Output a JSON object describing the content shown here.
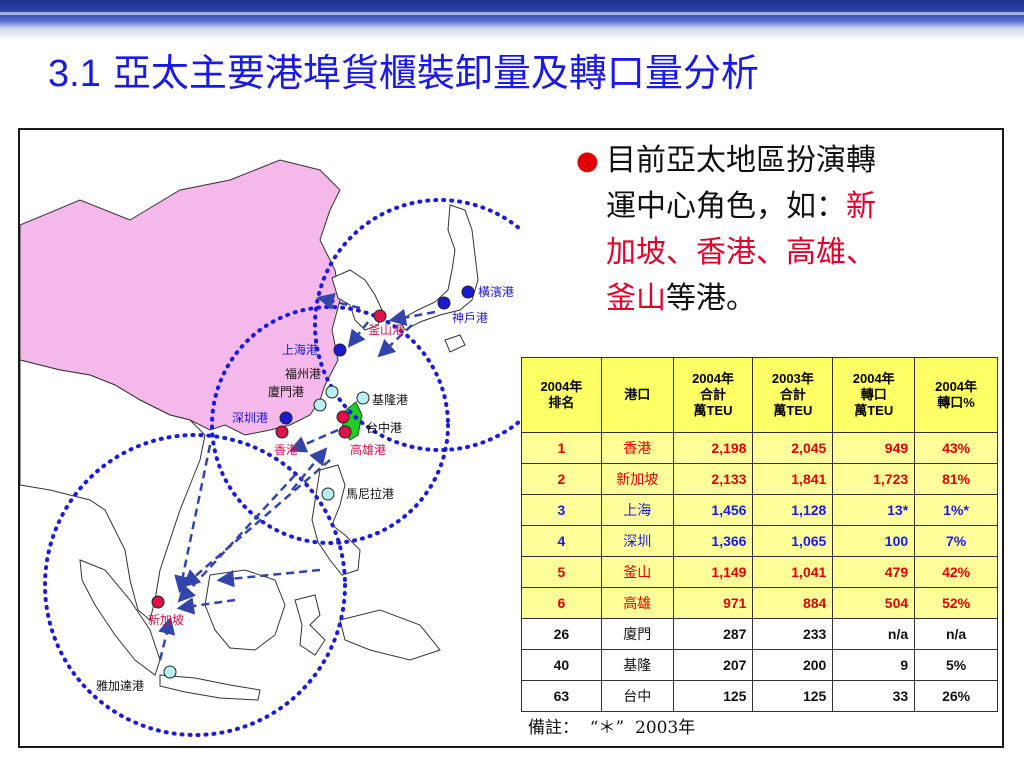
{
  "slide": {
    "title_number": "3.1",
    "title": "亞太主要港埠貨櫃裝卸量及轉口量分析"
  },
  "bullet": {
    "line1": "目前亞太地區扮演轉",
    "line2_prefix": "運中心角色，如：",
    "line2_red": "新",
    "line3_red": "加坡、香港、高雄、",
    "line4_red": "釜山",
    "line4_suffix": "等港。"
  },
  "map": {
    "labels": {
      "yokohama": "橫濱港",
      "kobe": "神戶港",
      "busan": "釜山港",
      "shanghai": "上海港",
      "fuzhou": "福州港",
      "xiamen": "廈門港",
      "keelung": "基隆港",
      "shenzhen": "深圳港",
      "taichung": "台中港",
      "hongkong": "香港",
      "kaohsiung": "高雄港",
      "manila": "馬尼拉港",
      "singapore": "新加坡",
      "jakarta": "雅加達港"
    },
    "colors": {
      "china_fill": "#f5b8ea",
      "taiwan_fill": "#22cc22",
      "route_blue": "#1a1ae6",
      "arrow_blue": "#3344aa",
      "port_red": "#e0104a",
      "port_navy": "#1a1ad0",
      "port_cyan": "#b8f0f0"
    }
  },
  "table": {
    "headers": [
      "2004年\n排名",
      "港口",
      "2004年\n合計\n萬TEU",
      "2003年\n合計\n萬TEU",
      "2004年\n轉口\n萬TEU",
      "2004年\n轉口%"
    ],
    "rows": [
      {
        "rank": "1",
        "port": "香港",
        "t2004": "2,198",
        "t2003": "2,045",
        "trans": "949",
        "pct": "43%",
        "color": "red",
        "highlight": true
      },
      {
        "rank": "2",
        "port": "新加坡",
        "t2004": "2,133",
        "t2003": "1,841",
        "trans": "1,723",
        "pct": "81%",
        "color": "red",
        "highlight": true
      },
      {
        "rank": "3",
        "port": "上海",
        "t2004": "1,456",
        "t2003": "1,128",
        "trans": "13*",
        "pct": "1%*",
        "color": "blue",
        "highlight": true
      },
      {
        "rank": "4",
        "port": "深圳",
        "t2004": "1,366",
        "t2003": "1,065",
        "trans": "100",
        "pct": "7%",
        "color": "blue",
        "highlight": true
      },
      {
        "rank": "5",
        "port": "釜山",
        "t2004": "1,149",
        "t2003": "1,041",
        "trans": "479",
        "pct": "42%",
        "color": "red",
        "highlight": true
      },
      {
        "rank": "6",
        "port": "高雄",
        "t2004": "971",
        "t2003": "884",
        "trans": "504",
        "pct": "52%",
        "color": "red",
        "highlight": true
      },
      {
        "rank": "26",
        "port": "廈門",
        "t2004": "287",
        "t2003": "233",
        "trans": "n/a",
        "pct": "n/a",
        "color": "black",
        "highlight": false
      },
      {
        "rank": "40",
        "port": "基隆",
        "t2004": "207",
        "t2003": "200",
        "trans": "9",
        "pct": "5%",
        "color": "black",
        "highlight": false
      },
      {
        "rank": "63",
        "port": "台中",
        "t2004": "125",
        "t2003": "125",
        "trans": "33",
        "pct": "26%",
        "color": "black",
        "highlight": false
      }
    ]
  },
  "note": "備註：  “＊”  2003年"
}
